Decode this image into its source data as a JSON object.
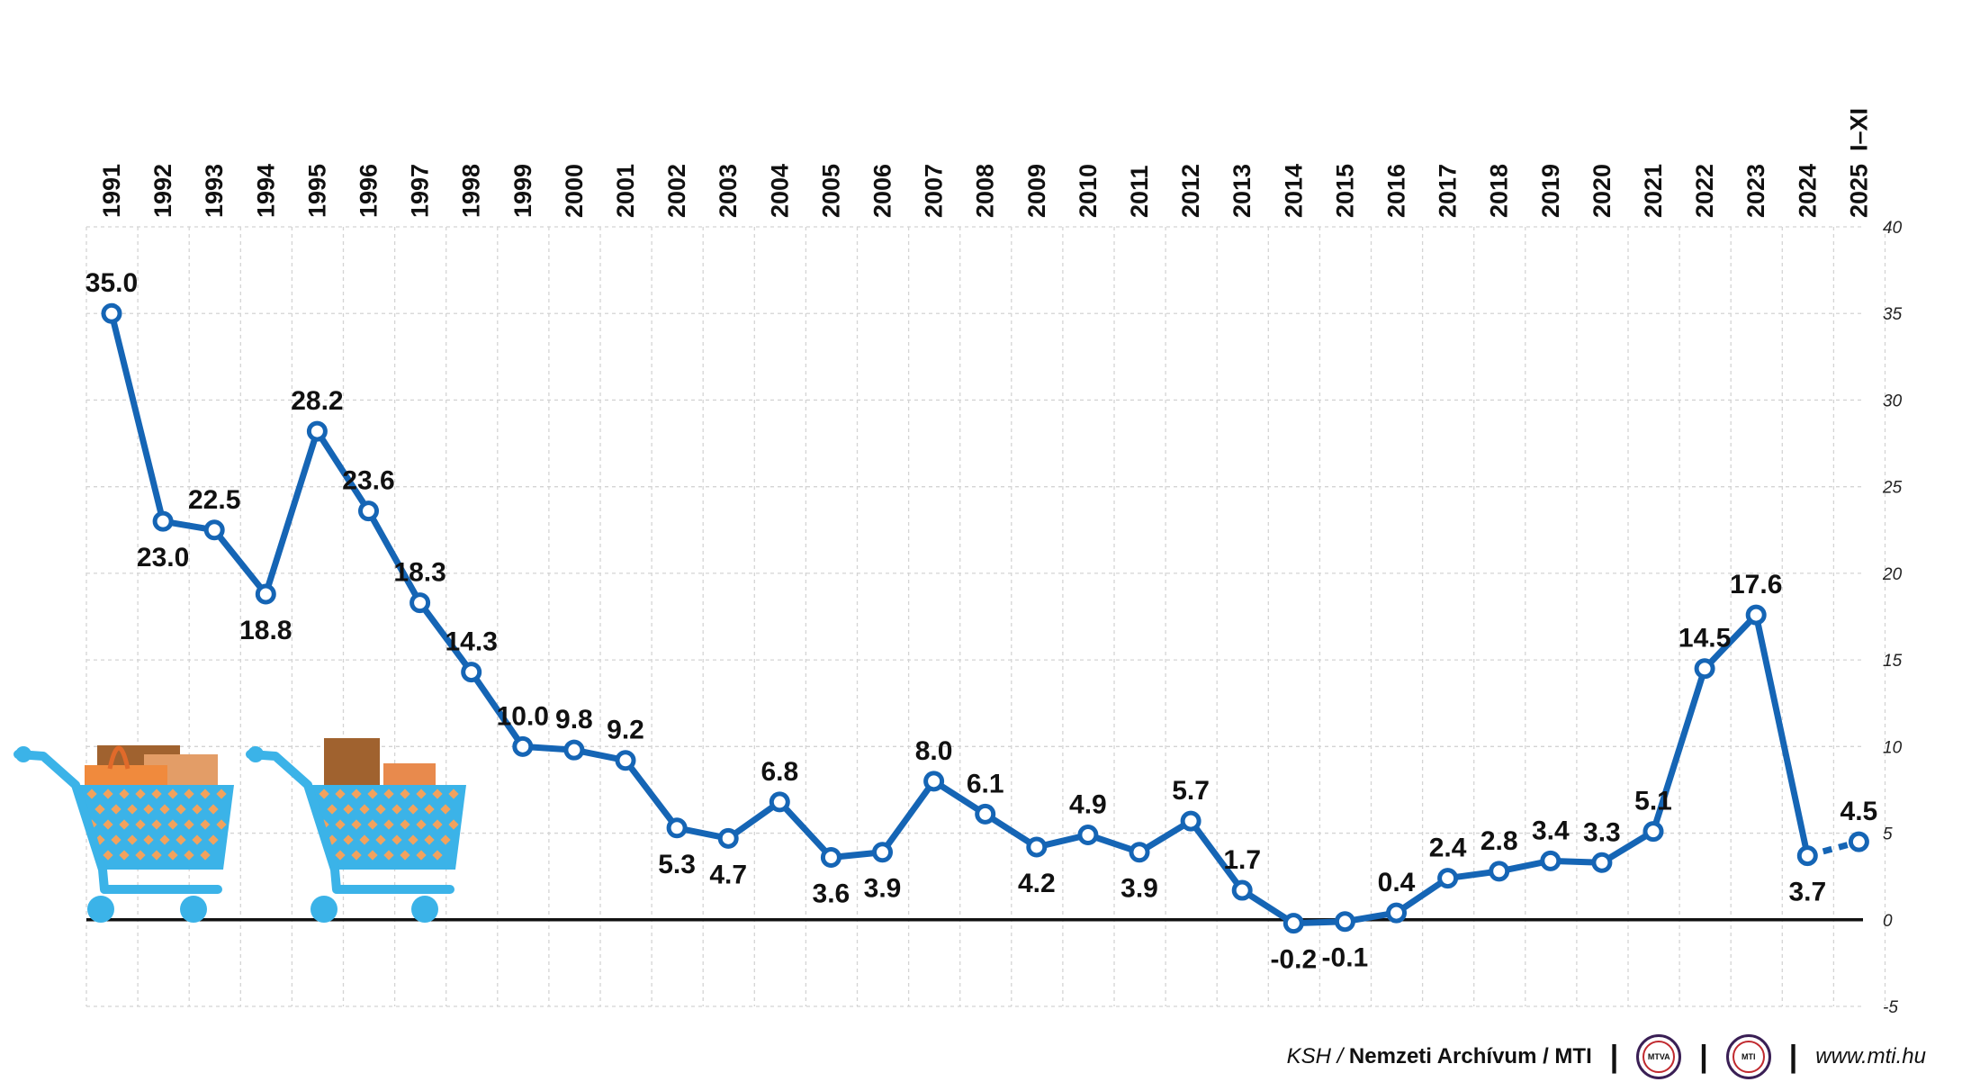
{
  "chart_data": {
    "type": "line",
    "categories": [
      "1991",
      "1992",
      "1993",
      "1994",
      "1995",
      "1996",
      "1997",
      "1998",
      "1999",
      "2000",
      "2001",
      "2002",
      "2003",
      "2004",
      "2005",
      "2006",
      "2007",
      "2008",
      "2009",
      "2010",
      "2011",
      "2012",
      "2013",
      "2014",
      "2015",
      "2016",
      "2017",
      "2018",
      "2019",
      "2020",
      "2021",
      "2022",
      "2023",
      "2024",
      "2025"
    ],
    "last_category_suffix": "I–XI",
    "values": [
      35.0,
      23.0,
      22.5,
      18.8,
      28.2,
      23.6,
      18.3,
      14.3,
      10.0,
      9.8,
      9.2,
      5.3,
      4.7,
      6.8,
      3.6,
      3.9,
      8.0,
      6.1,
      4.2,
      4.9,
      3.9,
      5.7,
      1.7,
      -0.2,
      -0.1,
      0.4,
      2.4,
      2.8,
      3.4,
      3.3,
      5.1,
      14.5,
      17.6,
      3.7,
      4.5
    ],
    "labels": [
      "35.0",
      "23.0",
      "22.5",
      "18.8",
      "28.2",
      "23.6",
      "18.3",
      "14.3",
      "10.0",
      "9.8",
      "9.2",
      "5.3",
      "4.7",
      "6.8",
      "3.6",
      "3.9",
      "8.0",
      "6.1",
      "4.2",
      "4.9",
      "3.9",
      "5.7",
      "1.7",
      "-0.2",
      "-0.1",
      "0.4",
      "2.4",
      "2.8",
      "3.4",
      "3.3",
      "5.1",
      "14.5",
      "17.6",
      "3.7",
      "4.5"
    ],
    "label_below": [
      false,
      true,
      false,
      true,
      false,
      false,
      false,
      false,
      false,
      false,
      false,
      true,
      true,
      false,
      true,
      true,
      false,
      false,
      true,
      false,
      true,
      false,
      false,
      true,
      true,
      false,
      false,
      false,
      false,
      false,
      false,
      false,
      false,
      true,
      false
    ],
    "dashed_last_segment": true,
    "yticks": [
      40,
      35,
      30,
      25,
      20,
      15,
      10,
      5,
      0,
      -5
    ],
    "ylim": [
      -5,
      40
    ],
    "title": "",
    "xlabel": "",
    "ylabel": "",
    "series_color": "#1565b5",
    "grid": true
  },
  "footer": {
    "source_italic": "KSH /",
    "source_bold": "Nemzeti Archívum / MTI",
    "separator": "|",
    "logo1_text": "MTVA",
    "logo2_text": "MTI",
    "url": "www.mti.hu"
  }
}
